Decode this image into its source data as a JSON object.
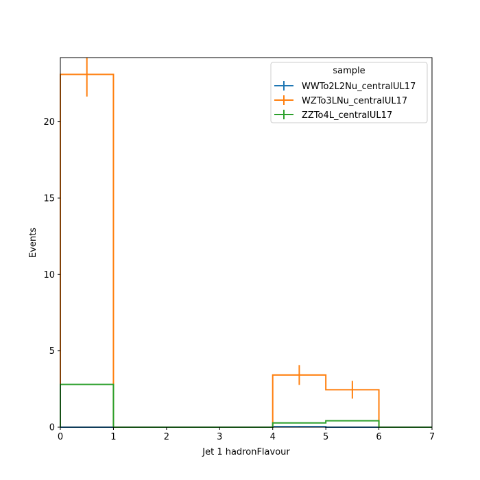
{
  "chart_data": {
    "type": "histogram-step",
    "xlabel": "Jet 1 hadronFlavour",
    "ylabel": "Events",
    "xlim": [
      0,
      7
    ],
    "ylim": [
      0,
      24.2
    ],
    "x_ticks": [
      0,
      1,
      2,
      3,
      4,
      5,
      6,
      7
    ],
    "y_ticks": [
      0,
      5,
      10,
      15,
      20
    ],
    "bin_edges": [
      0,
      1,
      2,
      3,
      4,
      5,
      6,
      7
    ],
    "grid": false,
    "legend": {
      "title": "sample",
      "placement": "top-right"
    },
    "series": [
      {
        "name": "WWTo2L2Nu_centralUL17",
        "color": "#1f77b4",
        "values": [
          0,
          0,
          0,
          0,
          0.04,
          0,
          0
        ],
        "errors": [
          0,
          0,
          0,
          0,
          0.04,
          0,
          0
        ]
      },
      {
        "name": "WZTo3LNu_centralUL17",
        "color": "#ff7f0e",
        "values": [
          23.1,
          0,
          0,
          0,
          3.42,
          2.45,
          0
        ],
        "errors": [
          1.45,
          0,
          0,
          0,
          0.65,
          0.58,
          0
        ]
      },
      {
        "name": "ZZTo4L_centralUL17",
        "color": "#2ca02c",
        "values": [
          2.8,
          0,
          0,
          0,
          0.28,
          0.42,
          0
        ],
        "errors": [
          0,
          0,
          0,
          0,
          0,
          0,
          0
        ]
      }
    ]
  }
}
